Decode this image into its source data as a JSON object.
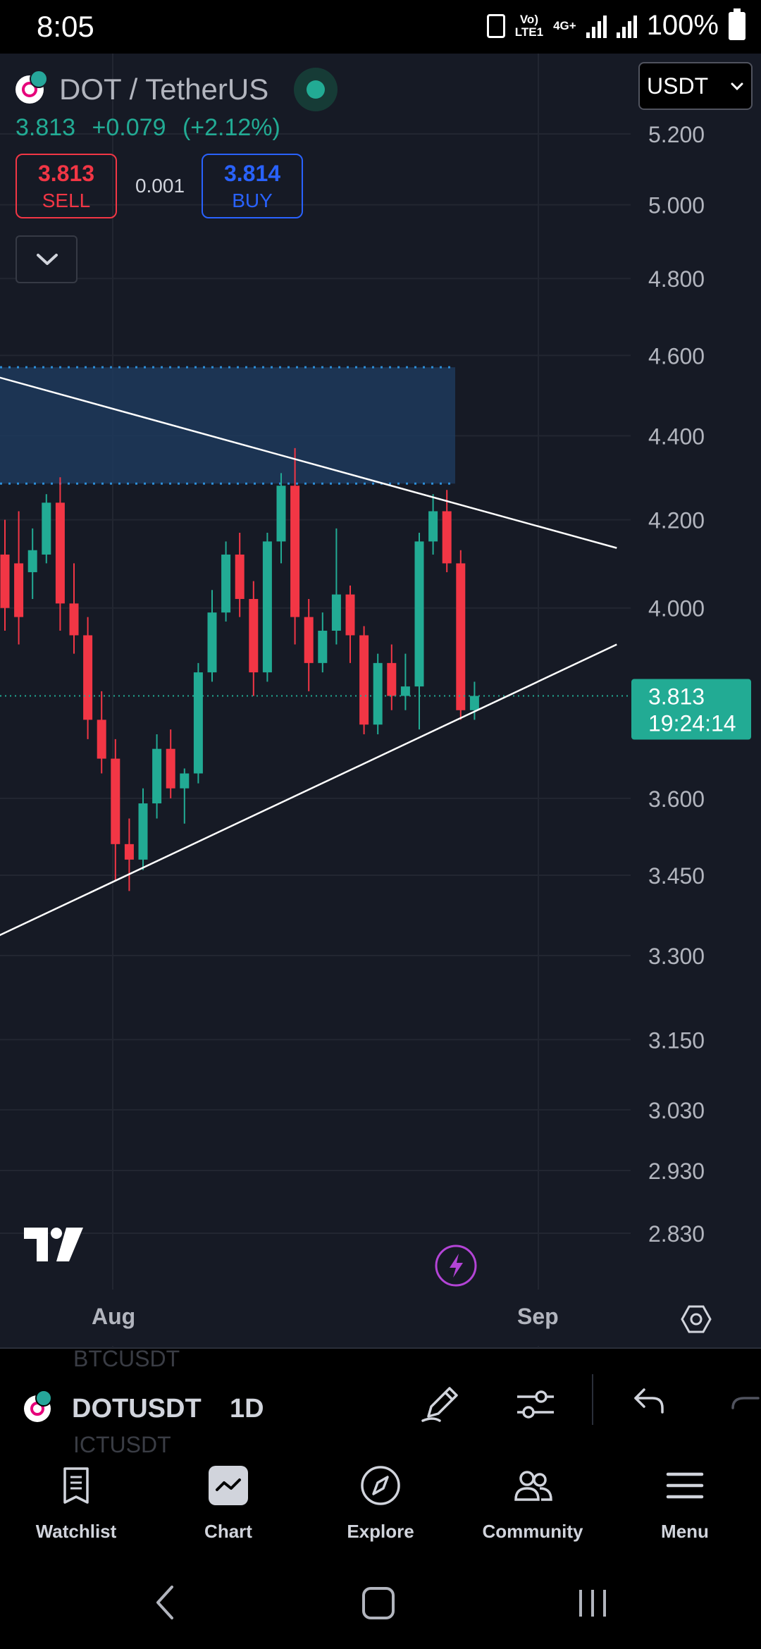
{
  "status_bar": {
    "time": "8:05",
    "network_top": "Vo)",
    "network_bottom": "LTE1",
    "network_gen": "4G+",
    "battery": "100%"
  },
  "header": {
    "title": "DOT / TetherUS",
    "last_price": "3.813",
    "change": "+0.079",
    "change_pct": "(+2.12%)",
    "sell_price": "3.813",
    "sell_label": "SELL",
    "spread": "0.001",
    "buy_price": "3.814",
    "buy_label": "BUY",
    "currency": "USDT"
  },
  "colors": {
    "background": "#161a25",
    "up": "#22ab94",
    "down": "#f23645",
    "buy": "#2962ff",
    "trendline": "#ffffff",
    "zone": "#1d3a5c",
    "zone_dots": "#2d8ed8"
  },
  "chart_data": {
    "type": "candlestick",
    "symbol": "DOTUSDT",
    "interval": "1D",
    "y_ticks": [
      "5.200",
      "5.000",
      "4.800",
      "4.600",
      "4.400",
      "4.200",
      "4.000",
      "3.600",
      "3.450",
      "3.300",
      "3.150",
      "3.030",
      "2.930",
      "2.830"
    ],
    "y_range": [
      2.78,
      5.3
    ],
    "scale": "log",
    "x_labels": [
      "Aug",
      "Sep"
    ],
    "last_price_label": "3.813",
    "countdown": "19:24:14",
    "candles": [
      {
        "o": 4.12,
        "h": 4.2,
        "l": 3.95,
        "c": 4.0
      },
      {
        "o": 4.1,
        "h": 4.22,
        "l": 3.92,
        "c": 3.98
      },
      {
        "o": 4.08,
        "h": 4.18,
        "l": 4.02,
        "c": 4.13
      },
      {
        "o": 4.12,
        "h": 4.26,
        "l": 4.1,
        "c": 4.24
      },
      {
        "o": 4.24,
        "h": 4.3,
        "l": 3.95,
        "c": 4.01
      },
      {
        "o": 4.01,
        "h": 4.1,
        "l": 3.9,
        "c": 3.94
      },
      {
        "o": 3.94,
        "h": 3.98,
        "l": 3.72,
        "c": 3.76
      },
      {
        "o": 3.76,
        "h": 3.82,
        "l": 3.65,
        "c": 3.68
      },
      {
        "o": 3.68,
        "h": 3.72,
        "l": 3.44,
        "c": 3.51
      },
      {
        "o": 3.51,
        "h": 3.56,
        "l": 3.42,
        "c": 3.48
      },
      {
        "o": 3.48,
        "h": 3.62,
        "l": 3.46,
        "c": 3.59
      },
      {
        "o": 3.59,
        "h": 3.73,
        "l": 3.56,
        "c": 3.7
      },
      {
        "o": 3.7,
        "h": 3.74,
        "l": 3.6,
        "c": 3.62
      },
      {
        "o": 3.62,
        "h": 3.66,
        "l": 3.55,
        "c": 3.65
      },
      {
        "o": 3.65,
        "h": 3.88,
        "l": 3.63,
        "c": 3.86
      },
      {
        "o": 3.86,
        "h": 4.04,
        "l": 3.84,
        "c": 3.99
      },
      {
        "o": 3.99,
        "h": 4.15,
        "l": 3.97,
        "c": 4.12
      },
      {
        "o": 4.12,
        "h": 4.17,
        "l": 3.98,
        "c": 4.02
      },
      {
        "o": 4.02,
        "h": 4.06,
        "l": 3.81,
        "c": 3.86
      },
      {
        "o": 3.86,
        "h": 4.17,
        "l": 3.84,
        "c": 4.15
      },
      {
        "o": 4.15,
        "h": 4.31,
        "l": 4.1,
        "c": 4.28
      },
      {
        "o": 4.28,
        "h": 4.37,
        "l": 3.92,
        "c": 3.98
      },
      {
        "o": 3.98,
        "h": 4.02,
        "l": 3.82,
        "c": 3.88
      },
      {
        "o": 3.88,
        "h": 3.99,
        "l": 3.86,
        "c": 3.95
      },
      {
        "o": 3.95,
        "h": 4.18,
        "l": 3.92,
        "c": 4.03
      },
      {
        "o": 4.03,
        "h": 4.05,
        "l": 3.88,
        "c": 3.94
      },
      {
        "o": 3.94,
        "h": 3.96,
        "l": 3.73,
        "c": 3.75
      },
      {
        "o": 3.75,
        "h": 3.9,
        "l": 3.73,
        "c": 3.88
      },
      {
        "o": 3.88,
        "h": 3.92,
        "l": 3.78,
        "c": 3.81
      },
      {
        "o": 3.81,
        "h": 3.9,
        "l": 3.78,
        "c": 3.83
      },
      {
        "o": 3.83,
        "h": 4.17,
        "l": 3.74,
        "c": 4.15
      },
      {
        "o": 4.15,
        "h": 4.26,
        "l": 4.12,
        "c": 4.22
      },
      {
        "o": 4.22,
        "h": 4.27,
        "l": 4.08,
        "c": 4.1
      },
      {
        "o": 4.1,
        "h": 4.13,
        "l": 3.76,
        "c": 3.78
      },
      {
        "o": 3.78,
        "h": 3.84,
        "l": 3.76,
        "c": 3.81
      }
    ],
    "resistance_zone": {
      "low": 4.285,
      "high": 4.57
    },
    "upper_trendline": [
      {
        "i": -1,
        "price": 4.55
      },
      {
        "i": 44.3,
        "price": 4.135
      }
    ],
    "lower_trendline": [
      {
        "i": -1,
        "price": 3.33
      },
      {
        "i": 44.3,
        "price": 3.92
      }
    ]
  },
  "toolbar": {
    "symbol": "DOTUSDT",
    "interval": "1D",
    "ghost_above": "BTCUSDT",
    "ghost_below": "ICTUSDT"
  },
  "nav": [
    {
      "label": "Watchlist",
      "icon": "watchlist-icon"
    },
    {
      "label": "Chart",
      "icon": "chart-icon"
    },
    {
      "label": "Explore",
      "icon": "compass-icon"
    },
    {
      "label": "Community",
      "icon": "community-icon"
    },
    {
      "label": "Menu",
      "icon": "menu-icon"
    }
  ]
}
